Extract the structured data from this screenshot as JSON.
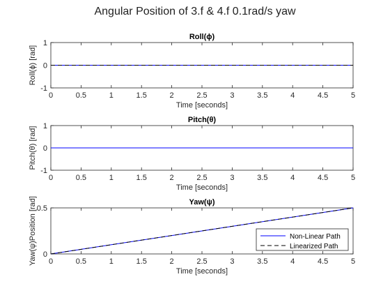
{
  "figure": {
    "suptitle": "Angular Position of 3.f & 4.f 0.1rad/s yaw"
  },
  "chart_data": [
    {
      "type": "line",
      "title": "Roll(ϕ)",
      "xlabel": "Time [seconds]",
      "ylabel": "Roll(ϕ) [rad]",
      "xlim": [
        0,
        5
      ],
      "ylim": [
        -1,
        1
      ],
      "xticks": [
        "0",
        "0.5",
        "1",
        "1.5",
        "2",
        "2.5",
        "3",
        "3.5",
        "4",
        "4.5",
        "5"
      ],
      "yticks": [
        "-1",
        "0",
        "1"
      ],
      "grid": false,
      "series": [
        {
          "color": "#0000ff",
          "dash": "solid",
          "x": [
            0,
            5
          ],
          "y": [
            0,
            0
          ]
        },
        {
          "color": "#000000",
          "dash": "dashed",
          "x": [
            0,
            5
          ],
          "y": [
            0,
            0
          ]
        }
      ]
    },
    {
      "type": "line",
      "title": "Pitch(θ)",
      "xlabel": "Time [seconds]",
      "ylabel": "Pitch(θ) [rad]",
      "xlim": [
        0,
        5
      ],
      "ylim": [
        -1,
        1
      ],
      "xticks": [
        "0",
        "0.5",
        "1",
        "1.5",
        "2",
        "2.5",
        "3",
        "3.5",
        "4",
        "4.5",
        "5"
      ],
      "yticks": [
        "-1",
        "0",
        "1"
      ],
      "grid": false,
      "series": [
        {
          "color": "#000000",
          "dash": "dashed",
          "x": [
            0,
            5
          ],
          "y": [
            0,
            0
          ]
        },
        {
          "color": "#0000ff",
          "dash": "solid",
          "x": [
            0,
            5
          ],
          "y": [
            0,
            0
          ]
        }
      ]
    },
    {
      "type": "line",
      "title": "Yaw(ψ)",
      "xlabel": "Time [seconds]",
      "ylabel": "Yaw(ψ)Position [rad]",
      "xlim": [
        0,
        5
      ],
      "ylim": [
        0,
        0.5
      ],
      "xticks": [
        "0",
        "0.5",
        "1",
        "1.5",
        "2",
        "2.5",
        "3",
        "3.5",
        "4",
        "4.5",
        "5"
      ],
      "yticks": [
        "0",
        "0.5"
      ],
      "grid": false,
      "legend": "bottom-right",
      "series": [
        {
          "name": "Non-Linear Path",
          "color": "#0000ff",
          "dash": "solid",
          "x": [
            0,
            5
          ],
          "y": [
            0,
            0.5
          ]
        },
        {
          "name": "Linearized Path",
          "color": "#000000",
          "dash": "dashed",
          "x": [
            0,
            5
          ],
          "y": [
            0,
            0.5
          ]
        }
      ]
    }
  ]
}
